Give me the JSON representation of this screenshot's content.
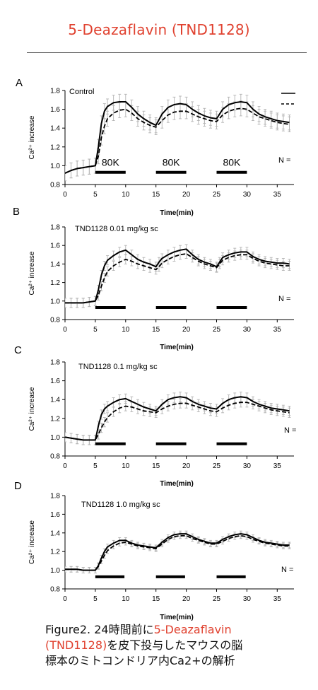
{
  "page": {
    "title": "5-Deazaflavin (TND1128)",
    "caption": {
      "line1_prefix": "Figure2. 24時間前に",
      "line1_highlight": "5-Deazaflavin",
      "line2_highlight": "(TND1128)",
      "line2_suffix": "を皮下投与したマウスの脳",
      "line3": "標本のミトコンドリア内Ca2+の解析"
    },
    "accent_color": "#e0412f"
  },
  "chart_data": [
    {
      "type": "line",
      "panel_letter": "A",
      "annotation": "Control",
      "ylabel": "Ca²⁺ increase",
      "xlabel": "Time(min)",
      "xlim": [
        0,
        37
      ],
      "ylim": [
        0.8,
        1.8
      ],
      "x_ticks": [
        0,
        5,
        10,
        15,
        20,
        25,
        30,
        35
      ],
      "y_ticks": [
        0.8,
        1.0,
        1.2,
        1.4,
        1.6,
        1.8
      ],
      "n_label": "N =",
      "legend": [
        {
          "style": "solid"
        },
        {
          "style": "dashed"
        }
      ],
      "stimulus_bars": [
        {
          "start": 5,
          "end": 10,
          "label": "80K"
        },
        {
          "start": 15,
          "end": 20,
          "label": "80K"
        },
        {
          "start": 25,
          "end": 30,
          "label": "80K"
        }
      ],
      "error_band": 0.08,
      "series": [
        {
          "style": "solid",
          "x": [
            0,
            1,
            2,
            3,
            4,
            5,
            5.5,
            6,
            6.5,
            7,
            8,
            9,
            10,
            11,
            12,
            13,
            14,
            15,
            16,
            17,
            18,
            19,
            20,
            21,
            22,
            23,
            24,
            25,
            26,
            27,
            28,
            29,
            30,
            31,
            32,
            33,
            34,
            35,
            36,
            37
          ],
          "y": [
            0.92,
            0.95,
            0.97,
            0.98,
            0.99,
            1.0,
            1.2,
            1.45,
            1.58,
            1.63,
            1.67,
            1.68,
            1.68,
            1.62,
            1.55,
            1.5,
            1.46,
            1.43,
            1.55,
            1.62,
            1.65,
            1.66,
            1.65,
            1.6,
            1.56,
            1.53,
            1.51,
            1.5,
            1.6,
            1.65,
            1.67,
            1.68,
            1.67,
            1.6,
            1.55,
            1.52,
            1.5,
            1.48,
            1.47,
            1.46
          ]
        },
        {
          "style": "dashed",
          "x": [
            0,
            1,
            2,
            3,
            4,
            5,
            5.5,
            6,
            6.5,
            7,
            8,
            9,
            10,
            11,
            12,
            13,
            14,
            15,
            16,
            17,
            18,
            19,
            20,
            21,
            22,
            23,
            24,
            25,
            26,
            27,
            28,
            29,
            30,
            31,
            32,
            33,
            34,
            35,
            36,
            37
          ],
          "y": [
            0.92,
            0.95,
            0.97,
            0.98,
            0.99,
            1.0,
            1.1,
            1.3,
            1.42,
            1.5,
            1.56,
            1.59,
            1.6,
            1.56,
            1.5,
            1.46,
            1.43,
            1.41,
            1.48,
            1.54,
            1.57,
            1.58,
            1.58,
            1.55,
            1.52,
            1.5,
            1.48,
            1.47,
            1.54,
            1.58,
            1.6,
            1.61,
            1.6,
            1.56,
            1.52,
            1.5,
            1.48,
            1.46,
            1.45,
            1.44
          ]
        }
      ]
    },
    {
      "type": "line",
      "panel_letter": "B",
      "annotation": "TND1128 0.01 mg/kg sc",
      "ylabel": "Ca²⁺ increase",
      "xlabel": "Time(min)",
      "xlim": [
        0,
        37
      ],
      "ylim": [
        0.8,
        1.8
      ],
      "x_ticks": [
        0,
        5,
        10,
        15,
        20,
        25,
        30,
        35
      ],
      "y_ticks": [
        0.8,
        1.0,
        1.2,
        1.4,
        1.6,
        1.8
      ],
      "n_label": "N =",
      "stimulus_bars": [
        {
          "start": 5,
          "end": 10,
          "label": ""
        },
        {
          "start": 15,
          "end": 20,
          "label": ""
        },
        {
          "start": 25,
          "end": 30,
          "label": ""
        }
      ],
      "error_band": 0.05,
      "series": [
        {
          "style": "solid",
          "x": [
            0,
            1,
            2,
            3,
            4,
            5,
            5.5,
            6,
            6.5,
            7,
            8,
            9,
            10,
            11,
            12,
            13,
            14,
            15,
            15.5,
            16,
            17,
            18,
            19,
            20,
            21,
            22,
            23,
            24,
            25,
            25.5,
            26,
            27,
            28,
            29,
            30,
            31,
            32,
            33,
            34,
            35,
            36,
            37
          ],
          "y": [
            0.98,
            0.98,
            0.98,
            0.98,
            0.99,
            1.0,
            1.12,
            1.28,
            1.38,
            1.44,
            1.49,
            1.53,
            1.55,
            1.5,
            1.45,
            1.42,
            1.4,
            1.37,
            1.42,
            1.46,
            1.5,
            1.53,
            1.55,
            1.56,
            1.5,
            1.45,
            1.42,
            1.4,
            1.37,
            1.42,
            1.47,
            1.5,
            1.52,
            1.53,
            1.53,
            1.48,
            1.45,
            1.43,
            1.42,
            1.41,
            1.41,
            1.4
          ]
        },
        {
          "style": "dashed",
          "x": [
            0,
            1,
            2,
            3,
            4,
            5,
            5.5,
            6,
            6.5,
            7,
            8,
            9,
            10,
            11,
            12,
            13,
            14,
            15,
            15.5,
            16,
            17,
            18,
            19,
            20,
            21,
            22,
            23,
            24,
            25,
            25.5,
            26,
            27,
            28,
            29,
            30,
            31,
            32,
            33,
            34,
            35,
            36,
            37
          ],
          "y": [
            0.98,
            0.98,
            0.98,
            0.98,
            0.99,
            1.0,
            1.06,
            1.16,
            1.25,
            1.32,
            1.38,
            1.42,
            1.45,
            1.43,
            1.4,
            1.38,
            1.36,
            1.34,
            1.37,
            1.41,
            1.45,
            1.48,
            1.5,
            1.51,
            1.47,
            1.43,
            1.4,
            1.38,
            1.36,
            1.4,
            1.44,
            1.47,
            1.49,
            1.5,
            1.5,
            1.46,
            1.43,
            1.41,
            1.4,
            1.39,
            1.38,
            1.38
          ]
        }
      ]
    },
    {
      "type": "line",
      "panel_letter": "C",
      "annotation": "TND1128 0.1 mg/kg sc",
      "ylabel": "Ca²⁺ increase",
      "xlabel": "Time(min)",
      "xlim": [
        0,
        37
      ],
      "ylim": [
        0.8,
        1.8
      ],
      "x_ticks": [
        0,
        5,
        10,
        15,
        20,
        25,
        30,
        35
      ],
      "y_ticks": [
        0.8,
        1.0,
        1.2,
        1.4,
        1.6,
        1.8
      ],
      "n_label": "N =",
      "stimulus_bars": [
        {
          "start": 5,
          "end": 10,
          "label": ""
        },
        {
          "start": 15,
          "end": 20,
          "label": ""
        },
        {
          "start": 25,
          "end": 30,
          "label": ""
        }
      ],
      "error_band": 0.05,
      "series": [
        {
          "style": "solid",
          "x": [
            0,
            1,
            2,
            3,
            4,
            5,
            5.5,
            6,
            6.5,
            7,
            8,
            9,
            10,
            11,
            12,
            13,
            14,
            15,
            16,
            17,
            18,
            19,
            20,
            21,
            22,
            23,
            24,
            25,
            26,
            27,
            28,
            29,
            30,
            31,
            32,
            33,
            34,
            35,
            36,
            37
          ],
          "y": [
            1.0,
            0.99,
            0.98,
            0.97,
            0.97,
            0.97,
            1.12,
            1.24,
            1.3,
            1.33,
            1.37,
            1.4,
            1.41,
            1.38,
            1.35,
            1.32,
            1.3,
            1.28,
            1.35,
            1.4,
            1.42,
            1.43,
            1.42,
            1.38,
            1.35,
            1.33,
            1.31,
            1.3,
            1.36,
            1.4,
            1.42,
            1.43,
            1.42,
            1.38,
            1.35,
            1.33,
            1.31,
            1.3,
            1.29,
            1.28
          ]
        },
        {
          "style": "dashed",
          "x": [
            0,
            1,
            2,
            3,
            4,
            5,
            5.5,
            6,
            6.5,
            7,
            8,
            9,
            10,
            11,
            12,
            13,
            14,
            15,
            16,
            17,
            18,
            19,
            20,
            21,
            22,
            23,
            24,
            25,
            26,
            27,
            28,
            29,
            30,
            31,
            32,
            33,
            34,
            35,
            36,
            37
          ],
          "y": [
            1.0,
            0.99,
            0.98,
            0.97,
            0.97,
            0.97,
            1.03,
            1.1,
            1.16,
            1.21,
            1.27,
            1.31,
            1.33,
            1.32,
            1.3,
            1.28,
            1.27,
            1.26,
            1.3,
            1.33,
            1.35,
            1.36,
            1.36,
            1.34,
            1.32,
            1.3,
            1.28,
            1.27,
            1.31,
            1.34,
            1.36,
            1.37,
            1.37,
            1.35,
            1.33,
            1.31,
            1.29,
            1.28,
            1.27,
            1.26
          ]
        }
      ]
    },
    {
      "type": "line",
      "panel_letter": "D",
      "annotation": "TND1128 1.0  mg/kg sc",
      "ylabel": "Ca²⁺ increase",
      "xlabel": "Time(min)",
      "xlim": [
        0,
        37
      ],
      "ylim": [
        0.8,
        1.8
      ],
      "x_ticks": [
        0,
        5,
        10,
        15,
        20,
        25,
        30,
        35
      ],
      "y_ticks": [
        0.8,
        1.0,
        1.2,
        1.4,
        1.6,
        1.8
      ],
      "n_label": "N =",
      "stimulus_bars": [
        {
          "start": 5,
          "end": 9.8,
          "label": ""
        },
        {
          "start": 15,
          "end": 19.8,
          "label": ""
        },
        {
          "start": 25,
          "end": 29.8,
          "label": ""
        }
      ],
      "error_band": 0.03,
      "series": [
        {
          "style": "solid",
          "x": [
            0,
            1,
            2,
            3,
            4,
            5,
            5.5,
            6,
            6.5,
            7,
            8,
            9,
            10,
            11,
            12,
            13,
            14,
            15,
            16,
            17,
            18,
            19,
            20,
            21,
            22,
            23,
            24,
            25,
            26,
            27,
            28,
            29,
            30,
            31,
            32,
            33,
            34,
            35,
            36,
            37
          ],
          "y": [
            1.01,
            1.01,
            1.01,
            1.0,
            1.0,
            1.0,
            1.05,
            1.13,
            1.2,
            1.25,
            1.29,
            1.32,
            1.32,
            1.29,
            1.27,
            1.26,
            1.25,
            1.24,
            1.3,
            1.35,
            1.38,
            1.39,
            1.39,
            1.36,
            1.33,
            1.31,
            1.29,
            1.29,
            1.33,
            1.36,
            1.38,
            1.39,
            1.38,
            1.35,
            1.32,
            1.3,
            1.29,
            1.28,
            1.27,
            1.27
          ]
        },
        {
          "style": "dashed",
          "x": [
            0,
            1,
            2,
            3,
            4,
            5,
            5.5,
            6,
            6.5,
            7,
            8,
            9,
            10,
            11,
            12,
            13,
            14,
            15,
            16,
            17,
            18,
            19,
            20,
            21,
            22,
            23,
            24,
            25,
            26,
            27,
            28,
            29,
            30,
            31,
            32,
            33,
            34,
            35,
            36,
            37
          ],
          "y": [
            1.01,
            1.01,
            1.01,
            1.0,
            1.0,
            1.0,
            1.04,
            1.1,
            1.16,
            1.21,
            1.26,
            1.29,
            1.3,
            1.28,
            1.26,
            1.25,
            1.24,
            1.23,
            1.28,
            1.33,
            1.36,
            1.37,
            1.37,
            1.34,
            1.32,
            1.3,
            1.28,
            1.28,
            1.31,
            1.34,
            1.36,
            1.37,
            1.36,
            1.33,
            1.31,
            1.29,
            1.28,
            1.27,
            1.26,
            1.26
          ]
        }
      ]
    }
  ]
}
